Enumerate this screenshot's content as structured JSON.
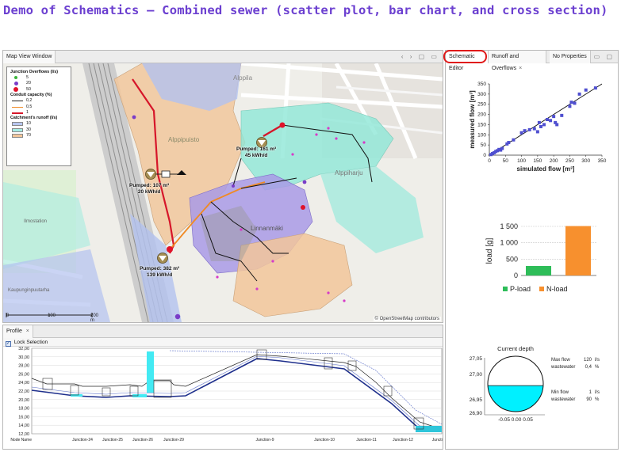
{
  "page": {
    "title": "Demo of Schematics – Combined sewer (scatter plot, bar chart, and cross section)"
  },
  "map_window": {
    "tab_label": "Map View Window",
    "controls": "‹ › ▢ ▭",
    "legend": {
      "junction_title": "Junction Overflows (l/s)",
      "junction_items": [
        {
          "label": "5",
          "color": "#3cb43c"
        },
        {
          "label": "20",
          "color": "#7a3cc8"
        },
        {
          "label": "50",
          "color": "#e0122a"
        }
      ],
      "conduit_title": "Conduit capacity (%)",
      "conduit_items": [
        {
          "label": "0,2",
          "color": "#1f1f1f"
        },
        {
          "label": "0,5",
          "color": "#f08a24"
        },
        {
          "label": "1",
          "color": "#d6162a"
        }
      ],
      "runoff_title": "Catchment's runoff (l/s)",
      "runoff_items": [
        {
          "label": "10",
          "color": "#b9c7f0"
        },
        {
          "label": "30",
          "color": "#a5ece2"
        },
        {
          "label": "70",
          "color": "#f2c59a"
        }
      ]
    },
    "pumps": [
      {
        "line1": "Pumped: 161 m³",
        "line2": "45 kWh/d"
      },
      {
        "line1": "Pumped: 107 m³",
        "line2": "20 kWh/d"
      },
      {
        "line1": "Pumped: 382 m³",
        "line2": "139 kWh/d"
      }
    ],
    "place_labels": {
      "alppila": "Alppila",
      "alppipuisto": "Alppipuisto",
      "alppiharju": "Alppiharju",
      "linnanmaki": "Linnanmäki",
      "ilmostation": "Ilmostation",
      "kaupunginpuutarha": "Kaupunginpuutarha"
    },
    "scale": {
      "s0": "0",
      "s1": "100",
      "s2": "200 m"
    },
    "credit": "© OpenStreetMap contributors"
  },
  "profile_window": {
    "tab_label": "Profile",
    "lock_label": "Lock Selection",
    "y_ticks": [
      "32,00",
      "30,00",
      "28,00",
      "26,00",
      "24,00",
      "22,00",
      "20,00",
      "18,00",
      "16,00",
      "14,00",
      "12,00"
    ],
    "x_labels": [
      "Node Name",
      "Junction-24",
      "Junction-25",
      "Junction-26",
      "Junction-29",
      "Junction-9",
      "Junction-10",
      "Junction-11",
      "Junction-12",
      "Junction"
    ]
  },
  "right_window": {
    "tabs": [
      {
        "label": "Schematic Editor"
      },
      {
        "label": "Runoff and Overflows"
      },
      {
        "label": "No Properties"
      }
    ],
    "tab_close": "×",
    "controls": "▭ ▢"
  },
  "chart_data": [
    {
      "type": "scatter",
      "xlabel": "simulated flow [m³]",
      "ylabel": "measured flow [m³]",
      "xlim": [
        0,
        350
      ],
      "ylim": [
        0,
        350
      ],
      "x_ticks": [
        "0",
        "50",
        "100",
        "150",
        "200",
        "250",
        "300",
        "350"
      ],
      "y_ticks": [
        "0",
        "50",
        "100",
        "150",
        "200",
        "250",
        "300",
        "350"
      ],
      "grid": false,
      "color": "#4f4fd0",
      "points": [
        {
          "x": 5,
          "y": 3
        },
        {
          "x": 10,
          "y": 8
        },
        {
          "x": 15,
          "y": 12
        },
        {
          "x": 20,
          "y": 18
        },
        {
          "x": 25,
          "y": 22
        },
        {
          "x": 30,
          "y": 28
        },
        {
          "x": 35,
          "y": 25
        },
        {
          "x": 40,
          "y": 33
        },
        {
          "x": 55,
          "y": 55
        },
        {
          "x": 60,
          "y": 62
        },
        {
          "x": 75,
          "y": 75
        },
        {
          "x": 100,
          "y": 110
        },
        {
          "x": 110,
          "y": 120
        },
        {
          "x": 125,
          "y": 125
        },
        {
          "x": 140,
          "y": 130
        },
        {
          "x": 150,
          "y": 115
        },
        {
          "x": 155,
          "y": 160
        },
        {
          "x": 160,
          "y": 140
        },
        {
          "x": 170,
          "y": 150
        },
        {
          "x": 180,
          "y": 175
        },
        {
          "x": 190,
          "y": 170
        },
        {
          "x": 200,
          "y": 190
        },
        {
          "x": 205,
          "y": 160
        },
        {
          "x": 210,
          "y": 150
        },
        {
          "x": 225,
          "y": 195
        },
        {
          "x": 250,
          "y": 240
        },
        {
          "x": 255,
          "y": 260
        },
        {
          "x": 265,
          "y": 255
        },
        {
          "x": 280,
          "y": 300
        },
        {
          "x": 300,
          "y": 320
        },
        {
          "x": 330,
          "y": 330
        }
      ],
      "trendline": [
        [
          0,
          0
        ],
        [
          350,
          350
        ]
      ]
    },
    {
      "type": "bar",
      "ylabel": "load [g]",
      "ylim": [
        0,
        1500
      ],
      "y_ticks": [
        "0",
        "500",
        "1 000",
        "1 500"
      ],
      "categories": [
        "P-load",
        "N-load"
      ],
      "values": [
        290,
        1510
      ],
      "colors": [
        "#2ebd59",
        "#f7902e"
      ],
      "legend_placement": "bottom"
    },
    {
      "type": "cross-section",
      "title": "Current depth",
      "y_ticks": [
        "27,05",
        "27,00",
        "26,95",
        "26,90"
      ],
      "x_ticks": "-0,05 0,00 0,05",
      "fill_level_fraction": 0.47,
      "fill_color": "#00f0ff",
      "max_flow": {
        "label1": "Max flow",
        "value": "120",
        "unit1": "l/s",
        "label2": "wastewater",
        "pct": "0,4",
        "unit2": "%"
      },
      "min_flow": {
        "label1": "Min flow",
        "value": "1",
        "unit1": "l/s",
        "label2": "wastewater",
        "pct": "90",
        "unit2": "%"
      }
    }
  ]
}
